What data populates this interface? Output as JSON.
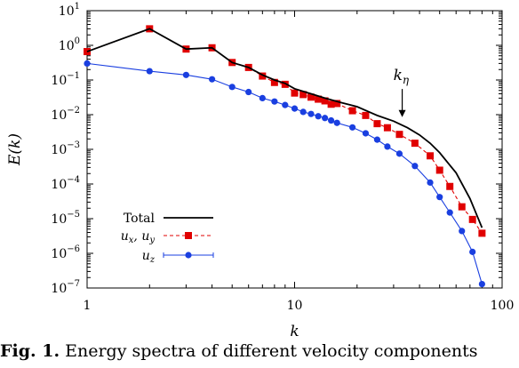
{
  "chart_data": {
    "type": "line",
    "xlabel": "k",
    "ylabel": "E(k)",
    "xscale": "log",
    "yscale": "log",
    "xlim": [
      1,
      100
    ],
    "ylim": [
      1e-07,
      10
    ],
    "x_ticks": [
      1,
      10,
      100
    ],
    "x_tick_labels": [
      "1",
      "10",
      "100"
    ],
    "y_ticks": [
      1e-07,
      1e-06,
      1e-05,
      0.0001,
      0.001,
      0.01,
      0.1,
      1,
      10
    ],
    "y_tick_bases": [
      "10",
      "10",
      "10",
      "10",
      "10",
      "10",
      "10",
      "10",
      "10"
    ],
    "y_tick_exponents": [
      "−7",
      "−6",
      "−5",
      "−4",
      "−3",
      "−2",
      "−1",
      "0",
      "1"
    ],
    "grid": false,
    "legend_position": "bottom-left",
    "series": [
      {
        "name": "Total",
        "style": "solid",
        "color": "#000000",
        "marker": "none",
        "x": [
          1,
          2,
          3,
          4,
          5,
          6,
          7,
          8,
          9,
          10,
          12,
          14,
          16,
          18,
          20,
          25,
          30,
          35,
          40,
          45,
          50,
          60,
          70,
          80
        ],
        "y": [
          0.66,
          3.0,
          0.78,
          0.85,
          0.32,
          0.23,
          0.14,
          0.1,
          0.08,
          0.056,
          0.04,
          0.03,
          0.024,
          0.02,
          0.017,
          0.0095,
          0.0065,
          0.0042,
          0.0026,
          0.0015,
          0.0008,
          0.00021,
          3.8e-05,
          5.5e-06
        ]
      },
      {
        "name": "u_x, u_y",
        "style": "dashed",
        "color": "#e00000",
        "marker": "square",
        "x": [
          1,
          2,
          3,
          4,
          5,
          6,
          7,
          8,
          9,
          10,
          11,
          12,
          13,
          14,
          15,
          16,
          19,
          22,
          25,
          28,
          32,
          38,
          45,
          50,
          56,
          64,
          72,
          80
        ],
        "y": [
          0.66,
          3.0,
          0.78,
          0.85,
          0.32,
          0.23,
          0.13,
          0.085,
          0.075,
          0.042,
          0.038,
          0.032,
          0.028,
          0.025,
          0.02,
          0.021,
          0.013,
          0.0095,
          0.0055,
          0.0042,
          0.0027,
          0.0015,
          0.00065,
          0.00025,
          8.5e-05,
          2.2e-05,
          9.5e-06,
          3.8e-06
        ]
      },
      {
        "name": "u_z",
        "style": "solid",
        "color": "#1a3fe0",
        "marker": "circle",
        "x": [
          1,
          2,
          3,
          4,
          5,
          6,
          7,
          8,
          9,
          10,
          11,
          12,
          13,
          14,
          15,
          16,
          19,
          22,
          25,
          28,
          32,
          38,
          45,
          50,
          56,
          64,
          72,
          80
        ],
        "y": [
          0.3,
          0.18,
          0.14,
          0.105,
          0.063,
          0.045,
          0.03,
          0.024,
          0.019,
          0.015,
          0.012,
          0.0105,
          0.009,
          0.008,
          0.0068,
          0.0058,
          0.0043,
          0.0029,
          0.0019,
          0.0012,
          0.00075,
          0.00033,
          0.00011,
          4.2e-05,
          1.5e-05,
          4.4e-06,
          1.1e-06,
          1.3e-07
        ]
      }
    ],
    "legend": [
      {
        "base": "Total",
        "sub": "",
        "comma_base": "",
        "comma_sub": ""
      },
      {
        "base": "u",
        "sub": "x",
        "comma_base": ", u",
        "comma_sub": "y"
      },
      {
        "base": "u",
        "sub": "z",
        "comma_base": "",
        "comma_sub": ""
      }
    ],
    "annotation": {
      "base": "k",
      "sub": "η",
      "arrow_x": 33,
      "arrow_y_from": 0.055,
      "arrow_y_to": 0.0085
    }
  },
  "caption": {
    "label": "Fig. 1.",
    "text": "Energy spectra of different velocity components"
  }
}
